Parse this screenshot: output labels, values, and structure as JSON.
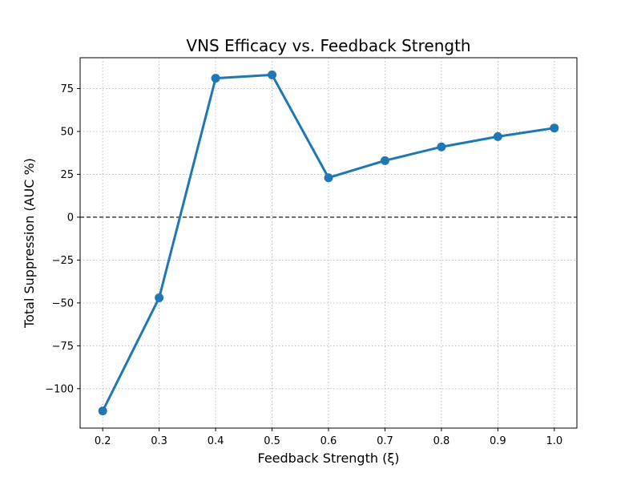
{
  "chart_data": {
    "type": "line",
    "title": "VNS Efficacy vs. Feedback Strength",
    "xlabel": "Feedback Strength (ξ)",
    "ylabel": "Total Suppression (AUC %)",
    "x": [
      0.2,
      0.3,
      0.4,
      0.5,
      0.6,
      0.7,
      0.8,
      0.9,
      1.0
    ],
    "series": [
      {
        "values": [
          -113,
          -47,
          81,
          83,
          23,
          33,
          41,
          47,
          52
        ],
        "color": "#1f77b4",
        "marker": "circle"
      }
    ],
    "xticks": [
      0.2,
      0.3,
      0.4,
      0.5,
      0.6,
      0.7,
      0.8,
      0.9,
      1.0
    ],
    "xtick_labels": [
      "0.2",
      "0.3",
      "0.4",
      "0.5",
      "0.6",
      "0.7",
      "0.8",
      "0.9",
      "1.0"
    ],
    "yticks": [
      -100,
      -75,
      -50,
      -25,
      0,
      25,
      50,
      75
    ],
    "ytick_labels": [
      "−100",
      "−75",
      "−50",
      "−25",
      "0",
      "25",
      "50",
      "75"
    ],
    "xlim": [
      0.16,
      1.04
    ],
    "ylim": [
      -123,
      93
    ],
    "grid": true,
    "reference_line": {
      "y": 0,
      "style": "dashed",
      "color": "#000000"
    }
  }
}
